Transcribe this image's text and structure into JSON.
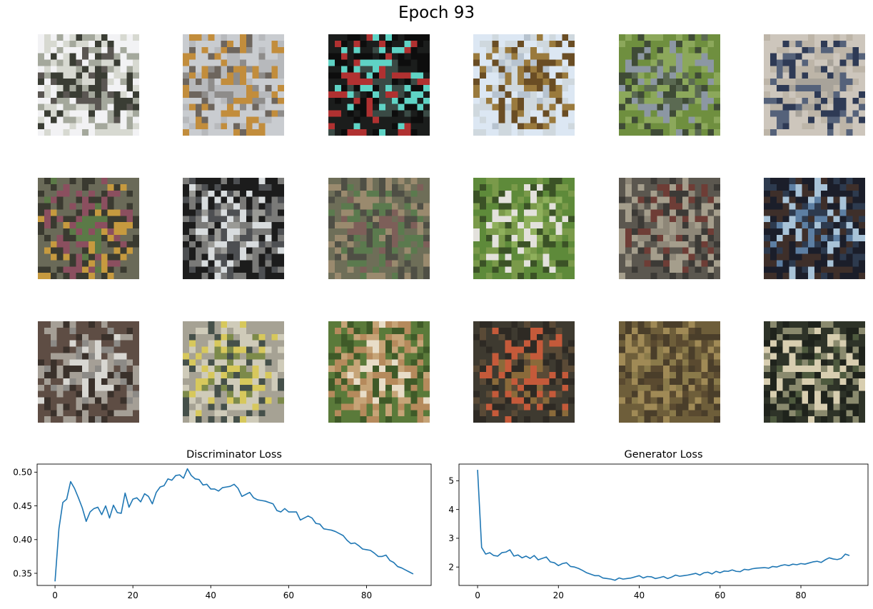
{
  "figure": {
    "title": "Epoch 93"
  },
  "samples": {
    "rows": 3,
    "cols": 6,
    "tiles": [
      {
        "palette": [
          "#f2f2f4",
          "#5a5652",
          "#3a3d34",
          "#a4a89c",
          "#d7d9d1"
        ]
      },
      {
        "palette": [
          "#c9ccd0",
          "#8e8c8a",
          "#6d655d",
          "#c28d3c",
          "#b7b9bc"
        ]
      },
      {
        "palette": [
          "#1b1d1c",
          "#3a4a45",
          "#5fd3c5",
          "#b03131",
          "#0d0d0d"
        ]
      },
      {
        "palette": [
          "#dce7f3",
          "#b7c3cf",
          "#9a7a3d",
          "#6a4d24",
          "#cfd8de"
        ]
      },
      {
        "palette": [
          "#6f8f3f",
          "#5b6a52",
          "#8c97a3",
          "#3f4b36",
          "#8ca85b"
        ]
      },
      {
        "palette": [
          "#cdc6bc",
          "#a8a39a",
          "#2e3a55",
          "#55627a",
          "#bdb5a8"
        ]
      },
      {
        "palette": [
          "#6a6a58",
          "#5b7a47",
          "#8b4f5f",
          "#c69a3f",
          "#3a3a30"
        ]
      },
      {
        "palette": [
          "#1c1c1c",
          "#9a9a96",
          "#d8dcde",
          "#4d4f52",
          "#7a7a78"
        ]
      },
      {
        "palette": [
          "#6e6e58",
          "#7d5f59",
          "#5b7a4e",
          "#9a8a6e",
          "#4f4f45"
        ]
      },
      {
        "palette": [
          "#5e8a3a",
          "#8fb05c",
          "#e3e1dc",
          "#3b5226",
          "#7a9a4a"
        ]
      },
      {
        "palette": [
          "#5b574f",
          "#8e8778",
          "#6e3d36",
          "#3c3a36",
          "#a59e8c"
        ]
      },
      {
        "palette": [
          "#1b1e2a",
          "#5d7fa3",
          "#a8c3d8",
          "#2d3a4e",
          "#3e2f2a"
        ]
      },
      {
        "palette": [
          "#5e4d44",
          "#d8d7d2",
          "#8c8a86",
          "#3a312b",
          "#a59f96"
        ]
      },
      {
        "palette": [
          "#a6a294",
          "#7c8a4a",
          "#d7c85c",
          "#45504a",
          "#cfcbb9"
        ]
      },
      {
        "palette": [
          "#5a7a3a",
          "#e8ddc8",
          "#c6a477",
          "#3f5a28",
          "#b58a5c"
        ]
      },
      {
        "palette": [
          "#3e3a30",
          "#8a6a3a",
          "#c55a3a",
          "#5a4a36",
          "#2e2a24"
        ]
      },
      {
        "palette": [
          "#6e5e3a",
          "#8a7a4a",
          "#5a4a30",
          "#a08a56",
          "#4a3e2a"
        ]
      },
      {
        "palette": [
          "#2e3328",
          "#4e5a3e",
          "#d8ceb0",
          "#8a8a6e",
          "#1f231c"
        ]
      }
    ]
  },
  "chart_data": [
    {
      "type": "line",
      "title": "Discriminator Loss",
      "xlim": [
        -4.6,
        96.6
      ],
      "ylim": [
        0.332,
        0.512
      ],
      "xticks": [
        0,
        20,
        40,
        60,
        80
      ],
      "xtick_labels": [
        "0",
        "20",
        "40",
        "60",
        "80"
      ],
      "yticks": [
        0.35,
        0.4,
        0.45,
        0.5
      ],
      "ytick_labels": [
        "0.35",
        "0.40",
        "0.45",
        "0.50"
      ],
      "color": "#1f77b4",
      "x": [
        0,
        1,
        2,
        3,
        4,
        5,
        6,
        7,
        8,
        9,
        10,
        11,
        12,
        13,
        14,
        15,
        16,
        17,
        18,
        19,
        20,
        21,
        22,
        23,
        24,
        25,
        26,
        27,
        28,
        29,
        30,
        31,
        32,
        33,
        34,
        35,
        36,
        37,
        38,
        39,
        40,
        41,
        42,
        43,
        44,
        45,
        46,
        47,
        48,
        49,
        50,
        51,
        52,
        53,
        54,
        55,
        56,
        57,
        58,
        59,
        60,
        61,
        62,
        63,
        64,
        65,
        66,
        67,
        68,
        69,
        70,
        71,
        72,
        73,
        74,
        75,
        76,
        77,
        78,
        79,
        80,
        81,
        82,
        83,
        84,
        85,
        86,
        87,
        88,
        89,
        90,
        91,
        92
      ],
      "y": [
        0.338,
        0.416,
        0.455,
        0.46,
        0.486,
        0.476,
        0.462,
        0.447,
        0.427,
        0.441,
        0.446,
        0.448,
        0.437,
        0.45,
        0.432,
        0.451,
        0.44,
        0.439,
        0.469,
        0.448,
        0.46,
        0.462,
        0.456,
        0.468,
        0.464,
        0.453,
        0.47,
        0.478,
        0.48,
        0.49,
        0.488,
        0.495,
        0.496,
        0.491,
        0.505,
        0.495,
        0.49,
        0.489,
        0.481,
        0.482,
        0.475,
        0.475,
        0.472,
        0.477,
        0.478,
        0.479,
        0.482,
        0.476,
        0.464,
        0.467,
        0.47,
        0.462,
        0.459,
        0.458,
        0.457,
        0.455,
        0.453,
        0.443,
        0.441,
        0.446,
        0.441,
        0.441,
        0.441,
        0.429,
        0.432,
        0.435,
        0.432,
        0.424,
        0.423,
        0.416,
        0.415,
        0.414,
        0.412,
        0.409,
        0.406,
        0.399,
        0.394,
        0.395,
        0.391,
        0.386,
        0.385,
        0.384,
        0.38,
        0.375,
        0.375,
        0.377,
        0.369,
        0.366,
        0.36,
        0.358,
        0.355,
        0.352,
        0.349
      ]
    },
    {
      "type": "line",
      "title": "Generator Loss",
      "xlim": [
        -4.6,
        96.6
      ],
      "ylim": [
        1.36,
        5.58
      ],
      "xticks": [
        0,
        20,
        40,
        60,
        80
      ],
      "xtick_labels": [
        "0",
        "20",
        "40",
        "60",
        "80"
      ],
      "yticks": [
        2,
        3,
        4,
        5
      ],
      "ytick_labels": [
        "2",
        "3",
        "4",
        "5"
      ],
      "color": "#1f77b4",
      "x": [
        0,
        1,
        2,
        3,
        4,
        5,
        6,
        7,
        8,
        9,
        10,
        11,
        12,
        13,
        14,
        15,
        16,
        17,
        18,
        19,
        20,
        21,
        22,
        23,
        24,
        25,
        26,
        27,
        28,
        29,
        30,
        31,
        32,
        33,
        34,
        35,
        36,
        37,
        38,
        39,
        40,
        41,
        42,
        43,
        44,
        45,
        46,
        47,
        48,
        49,
        50,
        51,
        52,
        53,
        54,
        55,
        56,
        57,
        58,
        59,
        60,
        61,
        62,
        63,
        64,
        65,
        66,
        67,
        68,
        69,
        70,
        71,
        72,
        73,
        74,
        75,
        76,
        77,
        78,
        79,
        80,
        81,
        82,
        83,
        84,
        85,
        86,
        87,
        88,
        89,
        90,
        91,
        92
      ],
      "y": [
        5.38,
        2.68,
        2.45,
        2.5,
        2.4,
        2.38,
        2.5,
        2.52,
        2.6,
        2.38,
        2.42,
        2.32,
        2.38,
        2.3,
        2.4,
        2.25,
        2.3,
        2.35,
        2.18,
        2.15,
        2.05,
        2.12,
        2.15,
        2.02,
        2.0,
        1.95,
        1.88,
        1.8,
        1.75,
        1.7,
        1.7,
        1.62,
        1.6,
        1.58,
        1.54,
        1.62,
        1.58,
        1.6,
        1.62,
        1.66,
        1.7,
        1.62,
        1.67,
        1.66,
        1.6,
        1.63,
        1.67,
        1.6,
        1.65,
        1.72,
        1.68,
        1.7,
        1.72,
        1.75,
        1.78,
        1.72,
        1.8,
        1.82,
        1.76,
        1.85,
        1.8,
        1.86,
        1.85,
        1.9,
        1.85,
        1.84,
        1.92,
        1.9,
        1.94,
        1.96,
        1.97,
        1.98,
        1.96,
        2.02,
        2.0,
        2.05,
        2.08,
        2.05,
        2.1,
        2.08,
        2.12,
        2.1,
        2.14,
        2.18,
        2.2,
        2.16,
        2.25,
        2.32,
        2.28,
        2.26,
        2.3,
        2.45,
        2.4
      ]
    }
  ]
}
